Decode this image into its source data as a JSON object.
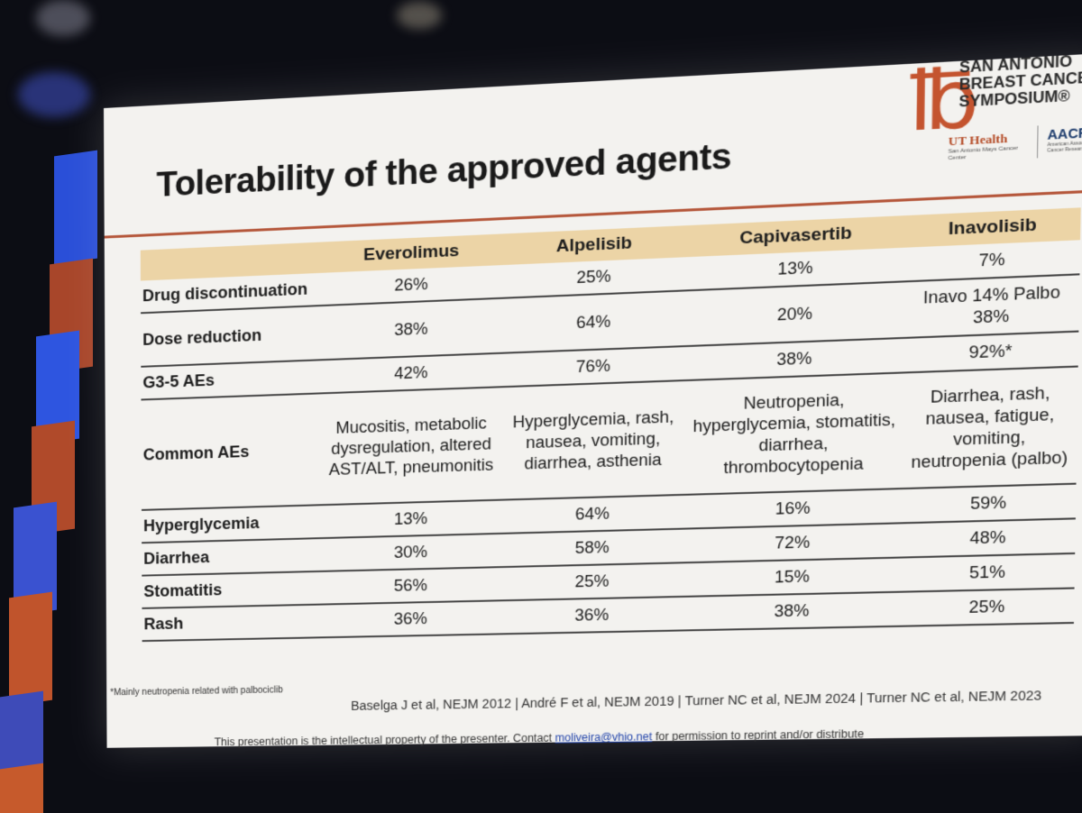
{
  "colors": {
    "accent_rule": "#b5573b",
    "header_fill": "#ecd4a6",
    "slide_bg": "#f3f2ef",
    "logo_orange": "#c4542f"
  },
  "slide": {
    "title": "Tolerability of the approved agents",
    "logo": {
      "line1": "SAN ANTONIO",
      "line2": "BREAST CANCER",
      "line3": "SYMPOSIUM®",
      "ut": "UT Health",
      "ut_sub": "San Antonio Mays Cancer Center",
      "aacr": "AACR",
      "aacr_sub": "American Association for Cancer Research®"
    },
    "table": {
      "columns": [
        "",
        "Everolimus",
        "Alpelisib",
        "Capivasertib",
        "Inavolisib"
      ],
      "rows": [
        {
          "label": "Drug discontinuation",
          "values": [
            "26%",
            "25%",
            "13%",
            "7%"
          ]
        },
        {
          "label": "Dose reduction",
          "values": [
            "38%",
            "64%",
            "20%",
            "Inavo 14% Palbo 38%"
          ]
        },
        {
          "label": "G3-5 AEs",
          "values": [
            "42%",
            "76%",
            "38%",
            "92%*"
          ]
        },
        {
          "label": "Common AEs",
          "values": [
            "Mucositis, metabolic dysregulation, altered AST/ALT, pneumonitis",
            "Hyperglycemia, rash, nausea, vomiting, diarrhea, asthenia",
            "Neutropenia, hyperglycemia, stomatitis, diarrhea, thrombocytopenia",
            "Diarrhea, rash, nausea, fatigue, vomiting, neutropenia (palbo)"
          ]
        },
        {
          "label": "Hyperglycemia",
          "values": [
            "13%",
            "64%",
            "16%",
            "59%"
          ]
        },
        {
          "label": "Diarrhea",
          "values": [
            "30%",
            "58%",
            "72%",
            "48%"
          ]
        },
        {
          "label": "Stomatitis",
          "values": [
            "56%",
            "25%",
            "15%",
            "51%"
          ]
        },
        {
          "label": "Rash",
          "values": [
            "36%",
            "36%",
            "38%",
            "25%"
          ]
        }
      ]
    },
    "footnote": "*Mainly neutropenia related with palbociclib",
    "references": "Baselga J et al, NEJM 2012 | André F et al, NEJM 2019 | Turner NC et al, NEJM 2024 | Turner NC et al, NEJM 2023",
    "ip_prefix": "This presentation is the intellectual property of the presenter. Contact",
    "ip_email": "moliveira@vhio.net",
    "ip_suffix": "for permission to reprint and/or distribute"
  }
}
